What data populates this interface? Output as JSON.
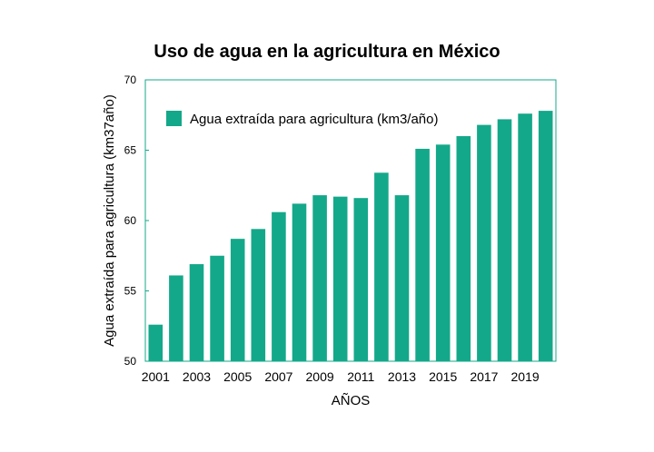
{
  "chart_data": {
    "type": "bar",
    "title": "Uso de agua en la agricultura en México",
    "xlabel": "AÑOS",
    "ylabel": "Agua extraída para agricultura (km37año)",
    "categories": [
      "2001",
      "2002",
      "2003",
      "2004",
      "2005",
      "2006",
      "2007",
      "2008",
      "2009",
      "2010",
      "2011",
      "2012",
      "2013",
      "2014",
      "2015",
      "2016",
      "2017",
      "2018",
      "2019",
      "2020"
    ],
    "x_tick_labels": [
      "2001",
      "2003",
      "2005",
      "2007",
      "2009",
      "2011",
      "2013",
      "2015",
      "2017",
      "2019"
    ],
    "y_tick_labels": [
      "50",
      "55",
      "60",
      "65",
      "70"
    ],
    "y_ticks": [
      50,
      55,
      60,
      65,
      70
    ],
    "ylim": [
      50,
      70
    ],
    "series": [
      {
        "name": "Agua extraída para agricultura (km3/año)",
        "color": "#14a88a",
        "values": [
          52.6,
          56.1,
          56.9,
          57.5,
          58.7,
          59.4,
          60.6,
          61.2,
          61.8,
          61.7,
          61.6,
          63.4,
          61.8,
          65.1,
          65.4,
          66.0,
          66.8,
          67.2,
          67.6,
          67.8
        ]
      }
    ],
    "legend_position": "top-left",
    "grid": false
  }
}
